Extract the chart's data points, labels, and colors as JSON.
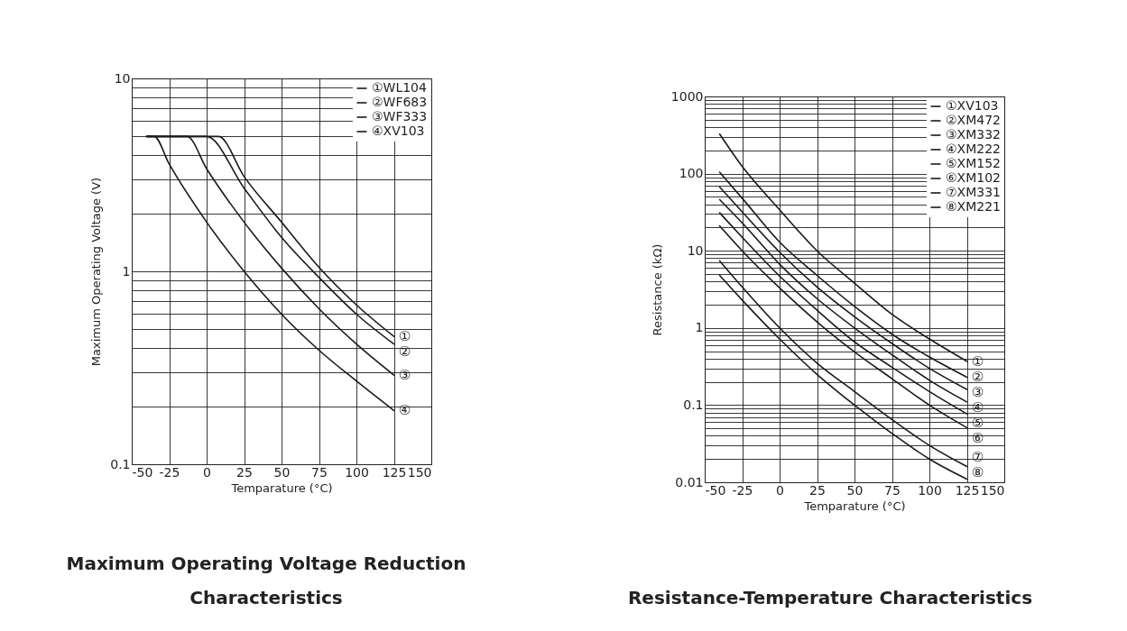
{
  "chart_data": [
    {
      "type": "line",
      "title": "Maximum Operating Voltage Reduction Characteristics",
      "xlabel": "Temparature (°C)",
      "ylabel": "Maximum Operating Voltage (V)",
      "log": "y",
      "grid": true,
      "legend": "top right",
      "line_style": "solid",
      "xlim": [
        -50,
        150
      ],
      "xticks": [
        -50,
        -25,
        0,
        25,
        50,
        75,
        100,
        125,
        150
      ],
      "ylim": [
        0.1,
        10
      ],
      "yticks": [
        0.1,
        {
          "value": 0.2,
          "label": null
        },
        {
          "value": 0.3,
          "label": null
        },
        {
          "value": 0.4,
          "label": null
        },
        {
          "value": 0.5,
          "label": null
        },
        {
          "value": 0.6,
          "label": null
        },
        {
          "value": 0.7,
          "label": null
        },
        {
          "value": 0.8,
          "label": null
        },
        {
          "value": 0.9,
          "label": null
        },
        1,
        {
          "value": 2,
          "label": null
        },
        {
          "value": 3,
          "label": null
        },
        {
          "value": 4,
          "label": null
        },
        {
          "value": 5,
          "label": null
        },
        {
          "value": 6,
          "label": null
        },
        {
          "value": 7,
          "label": null
        },
        {
          "value": 8,
          "label": null
        },
        {
          "value": 9,
          "label": null
        },
        10
      ],
      "series": [
        {
          "name": "①WL104",
          "color": "#1a1a1a",
          "x": [
            -40,
            8,
            25,
            50,
            75,
            100,
            125
          ],
          "values": [
            5,
            5,
            3.1,
            1.8,
            1.05,
            0.67,
            0.46
          ]
        },
        {
          "name": "②WF683",
          "color": "#1a1a1a",
          "x": [
            -40,
            0,
            25,
            50,
            75,
            100,
            125
          ],
          "values": [
            5,
            5,
            2.7,
            1.5,
            0.93,
            0.6,
            0.42
          ]
        },
        {
          "name": "③WF333",
          "color": "#1a1a1a",
          "x": [
            -40,
            -13,
            0,
            25,
            50,
            75,
            100,
            125
          ],
          "values": [
            5,
            5,
            3.4,
            1.8,
            1.04,
            0.64,
            0.42,
            0.29
          ]
        },
        {
          "name": "④XV103",
          "color": "#1a1a1a",
          "x": [
            -40,
            -35,
            -25,
            0,
            25,
            50,
            75,
            100,
            125
          ],
          "values": [
            5,
            5,
            3.6,
            1.8,
            1.0,
            0.6,
            0.39,
            0.27,
            0.19
          ]
        }
      ],
      "annotations": [
        "①",
        "②",
        "③",
        "④"
      ]
    },
    {
      "type": "line",
      "title": "Resistance-Temperature Characteristics",
      "xlabel": "Temparature (°C)",
      "ylabel": "Resistance (kΩ)",
      "log": "y",
      "grid": true,
      "legend": "top right",
      "line_style": "solid",
      "xlim": [
        -50,
        150
      ],
      "xticks": [
        -50,
        -25,
        0,
        25,
        50,
        75,
        100,
        125,
        150
      ],
      "ylim": [
        0.01,
        1000
      ],
      "yticks": [
        0.01,
        {
          "value": 0.02,
          "label": null
        },
        {
          "value": 0.03,
          "label": null
        },
        {
          "value": 0.04,
          "label": null
        },
        {
          "value": 0.05,
          "label": null
        },
        {
          "value": 0.06,
          "label": null
        },
        {
          "value": 0.07,
          "label": null
        },
        {
          "value": 0.08,
          "label": null
        },
        {
          "value": 0.09,
          "label": null
        },
        0.1,
        {
          "value": 0.2,
          "label": null
        },
        {
          "value": 0.3,
          "label": null
        },
        {
          "value": 0.4,
          "label": null
        },
        {
          "value": 0.5,
          "label": null
        },
        {
          "value": 0.6,
          "label": null
        },
        {
          "value": 0.7,
          "label": null
        },
        {
          "value": 0.8,
          "label": null
        },
        {
          "value": 0.9,
          "label": null
        },
        1,
        {
          "value": 2,
          "label": null
        },
        {
          "value": 3,
          "label": null
        },
        {
          "value": 4,
          "label": null
        },
        {
          "value": 5,
          "label": null
        },
        {
          "value": 6,
          "label": null
        },
        {
          "value": 7,
          "label": null
        },
        {
          "value": 8,
          "label": null
        },
        {
          "value": 9,
          "label": null
        },
        10,
        {
          "value": 20,
          "label": null
        },
        {
          "value": 30,
          "label": null
        },
        {
          "value": 40,
          "label": null
        },
        {
          "value": 50,
          "label": null
        },
        {
          "value": 60,
          "label": null
        },
        {
          "value": 70,
          "label": null
        },
        {
          "value": 80,
          "label": null
        },
        {
          "value": 90,
          "label": null
        },
        100,
        {
          "value": 200,
          "label": null
        },
        {
          "value": 300,
          "label": null
        },
        {
          "value": 400,
          "label": null
        },
        {
          "value": 500,
          "label": null
        },
        {
          "value": 600,
          "label": null
        },
        {
          "value": 700,
          "label": null
        },
        {
          "value": 800,
          "label": null
        },
        {
          "value": 900,
          "label": null
        },
        1000
      ],
      "x": [
        -40,
        -25,
        0,
        25,
        50,
        75,
        100,
        125
      ],
      "series": [
        {
          "name": "①XV103",
          "color": "#1a1a1a",
          "values": [
            325,
            124,
            34,
            10,
            3.8,
            1.5,
            0.72,
            0.37
          ]
        },
        {
          "name": "②XM472",
          "color": "#1a1a1a",
          "values": [
            104,
            48,
            13,
            4.8,
            1.9,
            0.83,
            0.42,
            0.23
          ]
        },
        {
          "name": "③XM332",
          "color": "#1a1a1a",
          "values": [
            67,
            32,
            9.6,
            3.4,
            1.4,
            0.63,
            0.3,
            0.16
          ]
        },
        {
          "name": "④XM222",
          "color": "#1a1a1a",
          "values": [
            46,
            23,
            6.7,
            2.4,
            1.0,
            0.45,
            0.21,
            0.11
          ]
        },
        {
          "name": "⑤XM152",
          "color": "#1a1a1a",
          "values": [
            31,
            15,
            4.7,
            1.7,
            0.66,
            0.31,
            0.15,
            0.077
          ]
        },
        {
          "name": "⑥XM102",
          "color": "#1a1a1a",
          "values": [
            21,
            10,
            3.3,
            1.2,
            0.49,
            0.22,
            0.1,
            0.051
          ]
        },
        {
          "name": "⑦XM331",
          "color": "#1a1a1a",
          "values": [
            7.4,
            3.4,
            1.0,
            0.35,
            0.15,
            0.065,
            0.03,
            0.016
          ]
        },
        {
          "name": "⑧XM221",
          "color": "#1a1a1a",
          "values": [
            4.8,
            2.3,
            0.72,
            0.25,
            0.1,
            0.043,
            0.02,
            0.011
          ]
        }
      ],
      "annotations": [
        "①",
        "②",
        "③",
        "④",
        "⑤",
        "⑥",
        "⑦",
        "⑧"
      ]
    }
  ]
}
